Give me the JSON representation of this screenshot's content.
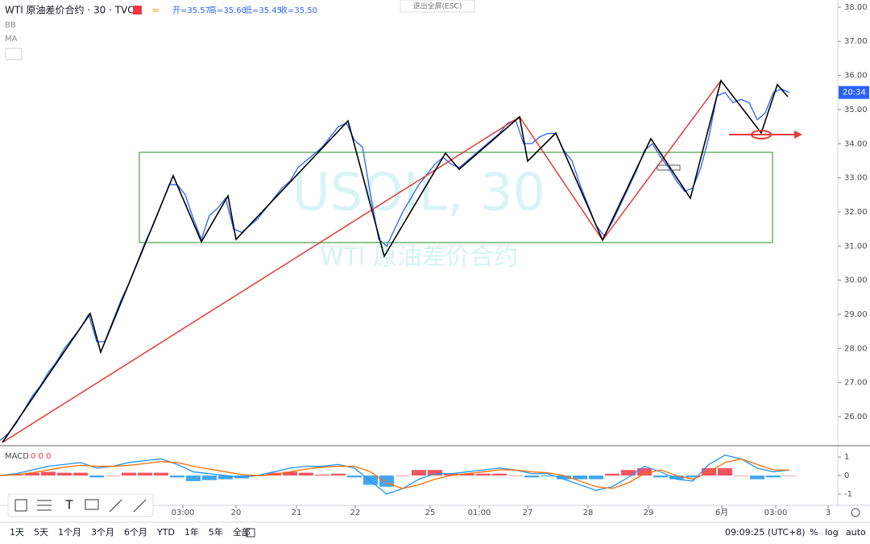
{
  "header": {
    "symbol": "WTI 原油差价合约 · 30 · TVC",
    "ohlc": [
      "开=35.57",
      "高=35.60",
      "低=35.45",
      "收=35.50"
    ],
    "indicators": [
      "BB",
      "MA"
    ],
    "exit_fullscreen": "退出全屏(ESC)"
  },
  "watermark": {
    "ticker": "USOIL, 30",
    "name": "WTI 原油差价合约"
  },
  "chart_data": [
    {
      "type": "line",
      "name": "price",
      "color": "#2962ff",
      "last_label": "20:34",
      "x": [
        0,
        1,
        2,
        3,
        4,
        5,
        6,
        7,
        8,
        9,
        10,
        11,
        12,
        13,
        14,
        15,
        16,
        17,
        18,
        19,
        20,
        21,
        22,
        23,
        24,
        25,
        26,
        27,
        28,
        29,
        30,
        31,
        32,
        33,
        34,
        35,
        36,
        37,
        38,
        39,
        40,
        41,
        42,
        43,
        44,
        45,
        46,
        47,
        48,
        49,
        50,
        51,
        52,
        53,
        54,
        55,
        56,
        57,
        58,
        59,
        60,
        61,
        62,
        63,
        64,
        65,
        66,
        67,
        68,
        69,
        70,
        71,
        72,
        73,
        74,
        75,
        76,
        77,
        78,
        79,
        80,
        81,
        82,
        83,
        84,
        85,
        86,
        87,
        88,
        89,
        90,
        91,
        92,
        93,
        94,
        95,
        96,
        97,
        98
      ],
      "values": [
        25.3,
        25.5,
        25.8,
        26.2,
        26.6,
        26.9,
        27.3,
        27.6,
        28.0,
        28.3,
        28.6,
        29.0,
        28.2,
        28.2,
        28.8,
        29.4,
        29.9,
        30.5,
        31.1,
        31.6,
        32.2,
        32.8,
        32.8,
        32.5,
        31.8,
        31.2,
        31.9,
        32.1,
        32.4,
        31.5,
        31.4,
        31.6,
        31.8,
        32.1,
        32.4,
        32.7,
        32.9,
        33.3,
        33.5,
        33.7,
        33.9,
        34.2,
        34.5,
        34.6,
        34.1,
        33.9,
        32.5,
        31.2,
        31.0,
        31.5,
        32.0,
        32.4,
        32.8,
        33.1,
        33.4,
        33.6,
        33.4,
        33.3,
        33.5,
        33.7,
        33.9,
        34.1,
        34.3,
        34.6,
        34.7,
        34.0,
        34.0,
        34.2,
        34.3,
        34.3,
        33.8,
        33.5,
        32.8,
        32.2,
        31.6,
        31.3,
        31.7,
        32.2,
        32.7,
        33.2,
        33.8,
        34.0,
        33.6,
        33.3,
        32.9,
        32.6,
        32.7,
        33.3,
        34.2,
        35.4,
        35.5,
        35.2,
        35.3,
        35.2,
        34.7,
        34.9,
        35.5,
        35.6,
        35.5
      ],
      "xlim": [
        0,
        104
      ],
      "xticks": [
        {
          "value": 22.7,
          "label": "03:00"
        },
        {
          "value": 29.3,
          "label": "20"
        },
        {
          "value": 36.8,
          "label": "21"
        },
        {
          "value": 44.1,
          "label": "22"
        },
        {
          "value": 53.4,
          "label": "25"
        },
        {
          "value": 59.5,
          "label": "01:00"
        },
        {
          "value": 65.5,
          "label": "27"
        },
        {
          "value": 73,
          "label": "28"
        },
        {
          "value": 80.5,
          "label": "29"
        },
        {
          "value": 89.6,
          "label": "6月"
        },
        {
          "value": 96.3,
          "label": "03:00"
        },
        {
          "value": 102.8,
          "label": "3"
        }
      ],
      "ylim": [
        25.15,
        38.21
      ],
      "yticks": [
        {
          "value": 26,
          "label": "26.00"
        },
        {
          "value": 27,
          "label": "27.00"
        },
        {
          "value": 28,
          "label": "28.00"
        },
        {
          "value": 29,
          "label": "29.00"
        },
        {
          "value": 30,
          "label": "30.00"
        },
        {
          "value": 31,
          "label": "31.00"
        },
        {
          "value": 32,
          "label": "32.00"
        },
        {
          "value": 33,
          "label": "33.00"
        },
        {
          "value": 34,
          "label": "34.00"
        },
        {
          "value": 35,
          "label": "35.00"
        },
        {
          "value": 36,
          "label": "36.00"
        },
        {
          "value": 37,
          "label": "37.00"
        },
        {
          "value": 38,
          "label": "38.00"
        }
      ]
    },
    {
      "type": "macd",
      "title": "MACD",
      "params": "0 0 0",
      "x": [
        0,
        2,
        4,
        6,
        8,
        10,
        12,
        14,
        16,
        18,
        20,
        22,
        24,
        26,
        28,
        30,
        32,
        34,
        36,
        38,
        40,
        42,
        44,
        46,
        48,
        50,
        52,
        54,
        56,
        58,
        60,
        62,
        64,
        66,
        68,
        70,
        72,
        74,
        76,
        78,
        80,
        82,
        84,
        86,
        88,
        90,
        92,
        94,
        96,
        98
      ],
      "series": [
        {
          "name": "MACD",
          "color": "#2196f3",
          "values": [
            0.0,
            0.1,
            0.3,
            0.5,
            0.6,
            0.7,
            0.4,
            0.5,
            0.7,
            0.8,
            0.9,
            0.6,
            0.2,
            0.1,
            0.0,
            -0.1,
            0.0,
            0.2,
            0.4,
            0.5,
            0.5,
            0.6,
            0.4,
            -0.3,
            -1.0,
            -0.7,
            -0.2,
            0.1,
            0.1,
            0.2,
            0.3,
            0.4,
            0.3,
            0.1,
            0.1,
            -0.2,
            -0.5,
            -0.8,
            -0.6,
            -0.1,
            0.5,
            0.2,
            -0.2,
            -0.3,
            0.6,
            1.1,
            0.9,
            0.4,
            0.2,
            0.3
          ]
        },
        {
          "name": "Signal",
          "color": "#ff6d00",
          "values": [
            0.0,
            0.05,
            0.15,
            0.3,
            0.45,
            0.55,
            0.5,
            0.5,
            0.55,
            0.65,
            0.75,
            0.7,
            0.5,
            0.35,
            0.2,
            0.05,
            0.0,
            0.05,
            0.2,
            0.35,
            0.45,
            0.5,
            0.5,
            0.2,
            -0.4,
            -0.7,
            -0.5,
            -0.2,
            0.0,
            0.1,
            0.2,
            0.3,
            0.3,
            0.2,
            0.15,
            0.0,
            -0.3,
            -0.6,
            -0.7,
            -0.4,
            0.1,
            0.3,
            0.0,
            -0.2,
            0.2,
            0.7,
            0.9,
            0.6,
            0.3,
            0.3
          ]
        }
      ],
      "histogram": {
        "colors": [
          "#f23645",
          "#2196f3"
        ],
        "values": [
          0,
          0.05,
          0.15,
          0.2,
          0.15,
          0.15,
          -0.1,
          0,
          0.15,
          0.15,
          0.15,
          -0.1,
          -0.3,
          -0.25,
          -0.2,
          -0.15,
          0,
          0.15,
          0.2,
          0.15,
          0.05,
          0.1,
          -0.1,
          -0.5,
          -0.6,
          0,
          0.3,
          0.3,
          0.1,
          0.1,
          0.1,
          0.1,
          0,
          -0.1,
          -0.05,
          -0.2,
          -0.2,
          -0.2,
          0.1,
          0.3,
          0.4,
          -0.1,
          -0.2,
          -0.1,
          0.4,
          0.4,
          0,
          -0.2,
          -0.1,
          0
        ]
      },
      "xlim": [
        0,
        104
      ],
      "ylim": [
        -1.52,
        1.48
      ],
      "yticks": [
        1,
        0,
        -1
      ]
    }
  ],
  "toolbar": {
    "ranges": [
      "1天",
      "5天",
      "1个月",
      "3个月",
      "6个月",
      "YTD",
      "1年",
      "5年",
      "全部"
    ],
    "clock": "09:09:25 (UTC+8)",
    "options": [
      "%",
      "log",
      "auto"
    ]
  }
}
